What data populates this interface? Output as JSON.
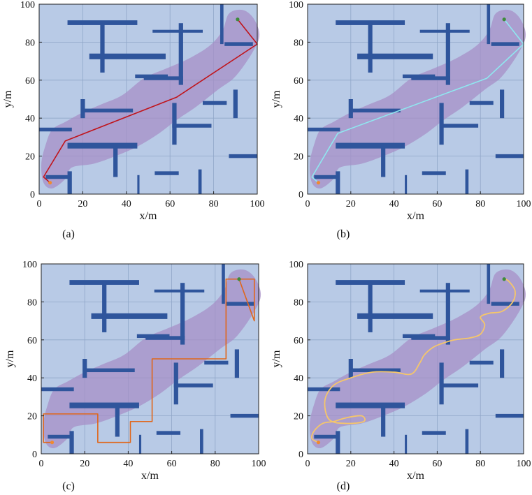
{
  "chart_data": [
    {
      "type": "line",
      "caption": "(a)",
      "xlabel": "x/m",
      "ylabel": "y/m",
      "xlim": [
        0,
        100
      ],
      "ylim": [
        0,
        100
      ],
      "xticks": [
        "0",
        "20",
        "40",
        "60",
        "80",
        "100"
      ],
      "yticks": [
        "0",
        "20",
        "40",
        "60",
        "80",
        "100"
      ],
      "grid": true,
      "path_color": "#c0141b",
      "series": [
        {
          "x": [
            5,
            2,
            12,
            63,
            100,
            91
          ],
          "y": [
            6,
            9,
            28,
            51,
            79,
            92
          ]
        }
      ]
    },
    {
      "type": "line",
      "caption": "(b)",
      "xlabel": "x/m",
      "ylabel": "y/m",
      "xlim": [
        0,
        100
      ],
      "ylim": [
        0,
        100
      ],
      "xticks": [
        "0",
        "20",
        "40",
        "60",
        "80",
        "100"
      ],
      "yticks": [
        "0",
        "20",
        "40",
        "60",
        "80",
        "100"
      ],
      "grid": true,
      "path_color": "#8fe8f0",
      "series": [
        {
          "x": [
            5,
            2,
            14,
            83,
            100,
            91
          ],
          "y": [
            6,
            9,
            32,
            61,
            79,
            92
          ]
        }
      ]
    },
    {
      "type": "line",
      "caption": "(c)",
      "xlabel": "x/m",
      "ylabel": "y/m",
      "xlim": [
        0,
        100
      ],
      "ylim": [
        0,
        100
      ],
      "xticks": [
        "0",
        "20",
        "40",
        "60",
        "80",
        "100"
      ],
      "yticks": [
        "0",
        "20",
        "40",
        "60",
        "80",
        "100"
      ],
      "grid": true,
      "path_color": "#e0661a",
      "series": [
        {
          "x": [
            5,
            1,
            1,
            26,
            26,
            41,
            41,
            51,
            51,
            85,
            85,
            98,
            98,
            91
          ],
          "y": [
            6,
            6,
            21,
            21,
            6,
            6,
            17,
            17,
            50,
            50,
            92,
            92,
            70,
            92
          ]
        }
      ]
    },
    {
      "type": "line",
      "caption": "(d)",
      "xlabel": "x/m",
      "ylabel": "y/m",
      "xlim": [
        0,
        100
      ],
      "ylim": [
        0,
        100
      ],
      "xticks": [
        "0",
        "20",
        "40",
        "60",
        "80",
        "100"
      ],
      "yticks": [
        "0",
        "20",
        "40",
        "60",
        "80",
        "100"
      ],
      "grid": true,
      "path_color": "#f5c66a",
      "series": [
        {
          "x": [
            5,
            2,
            3,
            7,
            12,
            18,
            25,
            26,
            18,
            10,
            8,
            12,
            20,
            30,
            40,
            48,
            52,
            54,
            58,
            62,
            68,
            75,
            80,
            82,
            80,
            84,
            90,
            95,
            96,
            93,
            91
          ],
          "y": [
            6,
            8,
            12,
            16,
            17,
            19,
            20,
            17,
            16,
            18,
            28,
            36,
            40,
            43,
            43,
            42,
            48,
            52,
            56,
            58,
            60,
            61,
            63,
            68,
            72,
            74,
            75,
            80,
            86,
            91,
            92
          ]
        }
      ]
    }
  ],
  "colors": {
    "plot_bg": "#b8cae6",
    "grid": "#8fa6c8",
    "obstacle": "#2f559c",
    "corridor": "#a58cc4",
    "start_marker": "#f08a30",
    "goal_marker": "#3f8a3c"
  }
}
